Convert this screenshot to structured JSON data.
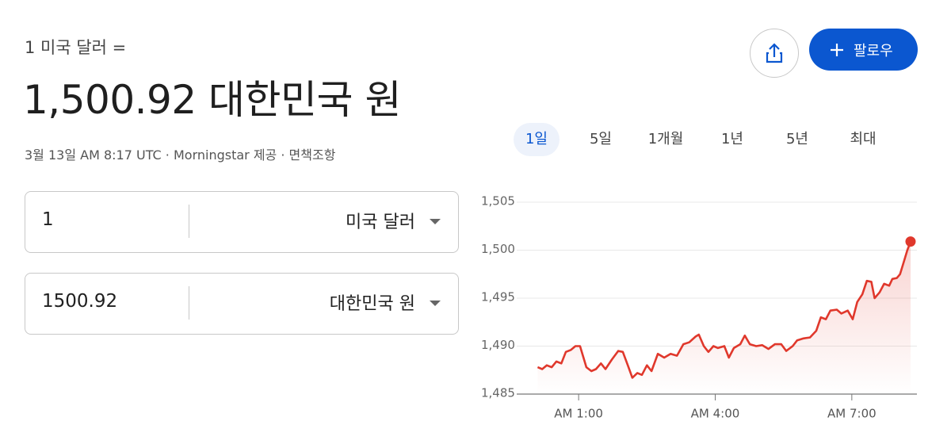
{
  "header": {
    "base": "1 미국 달러 =",
    "rate": "1,500.92 대한민국 원",
    "meta": "3월 13일 AM 8:17 UTC · Morningstar 제공 · 면책조항"
  },
  "actions": {
    "follow": "팔로우"
  },
  "ranges": [
    "1일",
    "5일",
    "1개월",
    "1년",
    "5년",
    "최대"
  ],
  "converter": [
    {
      "amount": "1",
      "currency": "미국 달러"
    },
    {
      "amount": "1500.92",
      "currency": "대한민국 원"
    }
  ],
  "chart_data": {
    "type": "line",
    "color": "#e0382c",
    "x": [
      0.1,
      0.2,
      0.3,
      0.41,
      0.51,
      0.62,
      0.72,
      0.83,
      0.93,
      1.03,
      1.17,
      1.28,
      1.38,
      1.49,
      1.59,
      1.73,
      1.87,
      1.97,
      2.08,
      2.18,
      2.29,
      2.39,
      2.5,
      2.6,
      2.74,
      2.88,
      3.02,
      3.16,
      3.3,
      3.43,
      3.57,
      3.64,
      3.75,
      3.85,
      3.96,
      4.06,
      4.2,
      4.3,
      4.41,
      4.55,
      4.65,
      4.76,
      4.9,
      5.03,
      5.17,
      5.31,
      5.45,
      5.56,
      5.7,
      5.8,
      5.94,
      6.08,
      6.22,
      6.32,
      6.43,
      6.53,
      6.67,
      6.77,
      6.91,
      7.02,
      7.12,
      7.23,
      7.33,
      7.43,
      7.5,
      7.61,
      7.71,
      7.82,
      7.89,
      7.99,
      8.06,
      8.13,
      8.22,
      8.29
    ],
    "values": [
      1487.8,
      1487.6,
      1488.0,
      1487.8,
      1488.4,
      1488.2,
      1489.4,
      1489.6,
      1490.0,
      1490.0,
      1487.8,
      1487.4,
      1487.6,
      1488.2,
      1487.6,
      1488.6,
      1489.5,
      1489.4,
      1488.0,
      1486.7,
      1487.2,
      1487.0,
      1488.0,
      1487.4,
      1489.2,
      1488.8,
      1489.2,
      1489.0,
      1490.2,
      1490.4,
      1491.0,
      1491.2,
      1490.0,
      1489.4,
      1490.0,
      1489.8,
      1490.0,
      1488.8,
      1489.8,
      1490.2,
      1491.1,
      1490.2,
      1490.0,
      1490.1,
      1489.7,
      1490.2,
      1490.2,
      1489.5,
      1490.0,
      1490.6,
      1490.8,
      1490.9,
      1491.6,
      1493.0,
      1492.8,
      1493.7,
      1493.8,
      1493.4,
      1493.7,
      1492.8,
      1494.6,
      1495.4,
      1496.8,
      1496.7,
      1495.0,
      1495.6,
      1496.5,
      1496.3,
      1497.0,
      1497.1,
      1497.5,
      1498.6,
      1500.0,
      1500.9
    ],
    "xlim": [
      -0.36,
      8.43
    ],
    "ylim": [
      1485,
      1505
    ],
    "xticks": [
      {
        "value": 1,
        "label": "AM 1:00"
      },
      {
        "value": 4,
        "label": "AM 4:00"
      },
      {
        "value": 7,
        "label": "AM 7:00"
      }
    ],
    "yticks": [
      {
        "value": 1485,
        "label": "1,485"
      },
      {
        "value": 1490,
        "label": "1,490"
      },
      {
        "value": 1495,
        "label": "1,495"
      },
      {
        "value": 1500,
        "label": "1,500"
      },
      {
        "value": 1505,
        "label": "1,505"
      }
    ],
    "grid": true
  }
}
